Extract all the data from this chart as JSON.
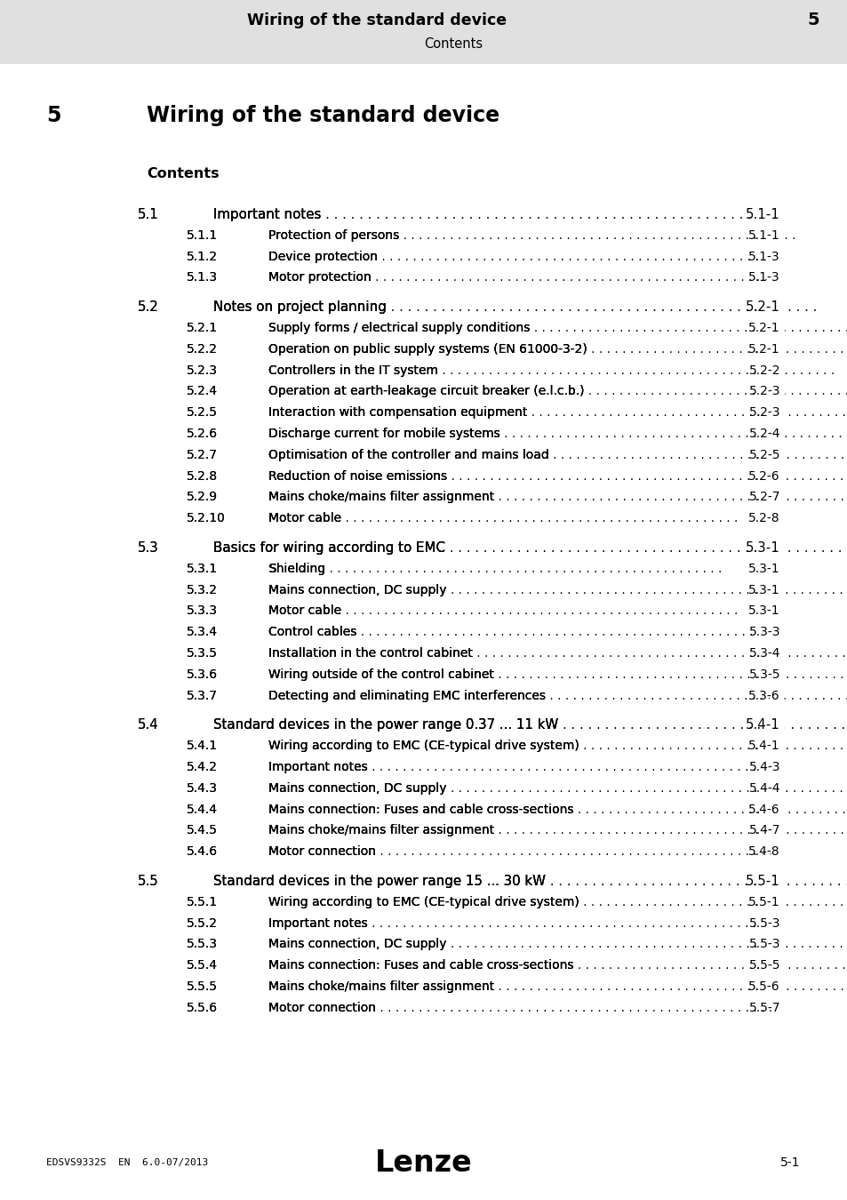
{
  "header_bg_color": "#e0e0e0",
  "header_title": "Wiring of the standard device",
  "header_chapter": "5",
  "header_subtitle": "Contents",
  "page_bg_color": "#ffffff",
  "chapter_num": "5",
  "chapter_title": "Wiring of the standard device",
  "section_label": "Contents",
  "footer_left": "EDSVS9332S  EN  6.0-07/2013",
  "footer_center": "Lenze",
  "footer_right": "5-1",
  "toc": [
    {
      "num": "5.1",
      "level": 1,
      "text": "Important notes",
      "page": "5.1-1"
    },
    {
      "num": "5.1.1",
      "level": 2,
      "text": "Protection of persons",
      "page": "5.1-1"
    },
    {
      "num": "5.1.2",
      "level": 2,
      "text": "Device protection",
      "page": "5.1-3"
    },
    {
      "num": "5.1.3",
      "level": 2,
      "text": "Motor protection",
      "page": "5.1-3"
    },
    {
      "num": "5.2",
      "level": 1,
      "text": "Notes on project planning",
      "page": "5.2-1"
    },
    {
      "num": "5.2.1",
      "level": 2,
      "text": "Supply forms / electrical supply conditions",
      "page": "5.2-1"
    },
    {
      "num": "5.2.2",
      "level": 2,
      "text": "Operation on public supply systems (EN 61000-3-2)",
      "page": "5.2-1"
    },
    {
      "num": "5.2.3",
      "level": 2,
      "text": "Controllers in the IT system",
      "page": "5.2-2"
    },
    {
      "num": "5.2.4",
      "level": 2,
      "text": "Operation at earth-leakage circuit breaker (e.l.c.b.)",
      "page": "5.2-3"
    },
    {
      "num": "5.2.5",
      "level": 2,
      "text": "Interaction with compensation equipment",
      "page": "5.2-3"
    },
    {
      "num": "5.2.6",
      "level": 2,
      "text": "Discharge current for mobile systems",
      "page": "5.2-4"
    },
    {
      "num": "5.2.7",
      "level": 2,
      "text": "Optimisation of the controller and mains load",
      "page": "5.2-5"
    },
    {
      "num": "5.2.8",
      "level": 2,
      "text": "Reduction of noise emissions",
      "page": "5.2-6"
    },
    {
      "num": "5.2.9",
      "level": 2,
      "text": "Mains choke/mains filter assignment",
      "page": "5.2-7"
    },
    {
      "num": "5.2.10",
      "level": 2,
      "text": "Motor cable",
      "page": "5.2-8"
    },
    {
      "num": "5.3",
      "level": 1,
      "text": "Basics for wiring according to EMC",
      "page": "5.3-1"
    },
    {
      "num": "5.3.1",
      "level": 2,
      "text": "Shielding",
      "page": "5.3-1"
    },
    {
      "num": "5.3.2",
      "level": 2,
      "text": "Mains connection, DC supply",
      "page": "5.3-1"
    },
    {
      "num": "5.3.3",
      "level": 2,
      "text": "Motor cable",
      "page": "5.3-1"
    },
    {
      "num": "5.3.4",
      "level": 2,
      "text": "Control cables",
      "page": "5.3-3"
    },
    {
      "num": "5.3.5",
      "level": 2,
      "text": "Installation in the control cabinet",
      "page": "5.3-4"
    },
    {
      "num": "5.3.6",
      "level": 2,
      "text": "Wiring outside of the control cabinet",
      "page": "5.3-5"
    },
    {
      "num": "5.3.7",
      "level": 2,
      "text": "Detecting and eliminating EMC interferences",
      "page": "5.3-6"
    },
    {
      "num": "5.4",
      "level": 1,
      "text": "Standard devices in the power range 0.37 ... 11 kW",
      "page": "5.4-1"
    },
    {
      "num": "5.4.1",
      "level": 2,
      "text": "Wiring according to EMC (CE-typical drive system)",
      "page": "5.4-1"
    },
    {
      "num": "5.4.2",
      "level": 2,
      "text": "Important notes",
      "page": "5.4-3"
    },
    {
      "num": "5.4.3",
      "level": 2,
      "text": "Mains connection, DC supply",
      "page": "5.4-4"
    },
    {
      "num": "5.4.4",
      "level": 2,
      "text": "Mains connection: Fuses and cable cross-sections",
      "page": "5.4-6"
    },
    {
      "num": "5.4.5",
      "level": 2,
      "text": "Mains choke/mains filter assignment",
      "page": "5.4-7"
    },
    {
      "num": "5.4.6",
      "level": 2,
      "text": "Motor connection",
      "page": "5.4-8"
    },
    {
      "num": "5.5",
      "level": 1,
      "text": "Standard devices in the power range 15 ... 30 kW",
      "page": "5.5-1"
    },
    {
      "num": "5.5.1",
      "level": 2,
      "text": "Wiring according to EMC (CE-typical drive system)",
      "page": "5.5-1"
    },
    {
      "num": "5.5.2",
      "level": 2,
      "text": "Important notes",
      "page": "5.5-3"
    },
    {
      "num": "5.5.3",
      "level": 2,
      "text": "Mains connection, DC supply",
      "page": "5.5-3"
    },
    {
      "num": "5.5.4",
      "level": 2,
      "text": "Mains connection: Fuses and cable cross-sections",
      "page": "5.5-5"
    },
    {
      "num": "5.5.5",
      "level": 2,
      "text": "Mains choke/mains filter assignment",
      "page": "5.5-6"
    },
    {
      "num": "5.5.6",
      "level": 2,
      "text": "Motor connection",
      "page": "5.5-7"
    }
  ]
}
